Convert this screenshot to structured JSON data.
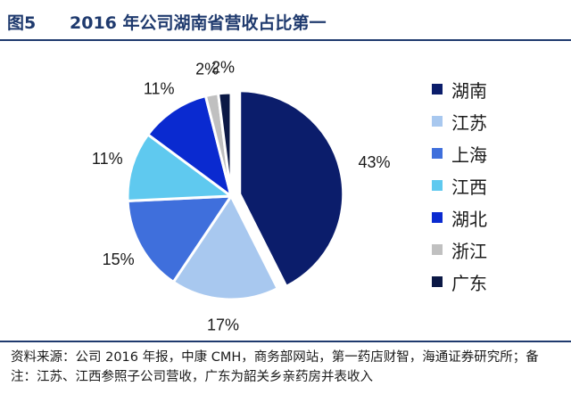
{
  "header": {
    "figure_number": "图5",
    "title": "2016 年公司湖南省营收占比第一"
  },
  "chart_data": {
    "type": "pie",
    "title": "2016 年公司湖南省营收占比第一",
    "categories": [
      "湖南",
      "江苏",
      "上海",
      "江西",
      "湖北",
      "浙江",
      "广东"
    ],
    "values": [
      43,
      17,
      15,
      11,
      11,
      2,
      2
    ],
    "labels": [
      "43%",
      "17%",
      "15%",
      "11%",
      "11%",
      "2%",
      "2%"
    ],
    "colors": [
      "#0b1d6b",
      "#a8c8ef",
      "#3f6fdc",
      "#5fc9ef",
      "#0a2ad0",
      "#c0c0c0",
      "#0b1845"
    ],
    "exploded": "湖南",
    "start_angle_deg": 0,
    "direction": "clockwise",
    "legend_position": "right"
  },
  "footer": {
    "source": "资料来源：公司 2016 年报，中康 CMH，商务部网站，第一药店财智，海通证券研究所；备注：江苏、江西参照子公司营收，广东为韶关乡亲药房并表收入"
  }
}
